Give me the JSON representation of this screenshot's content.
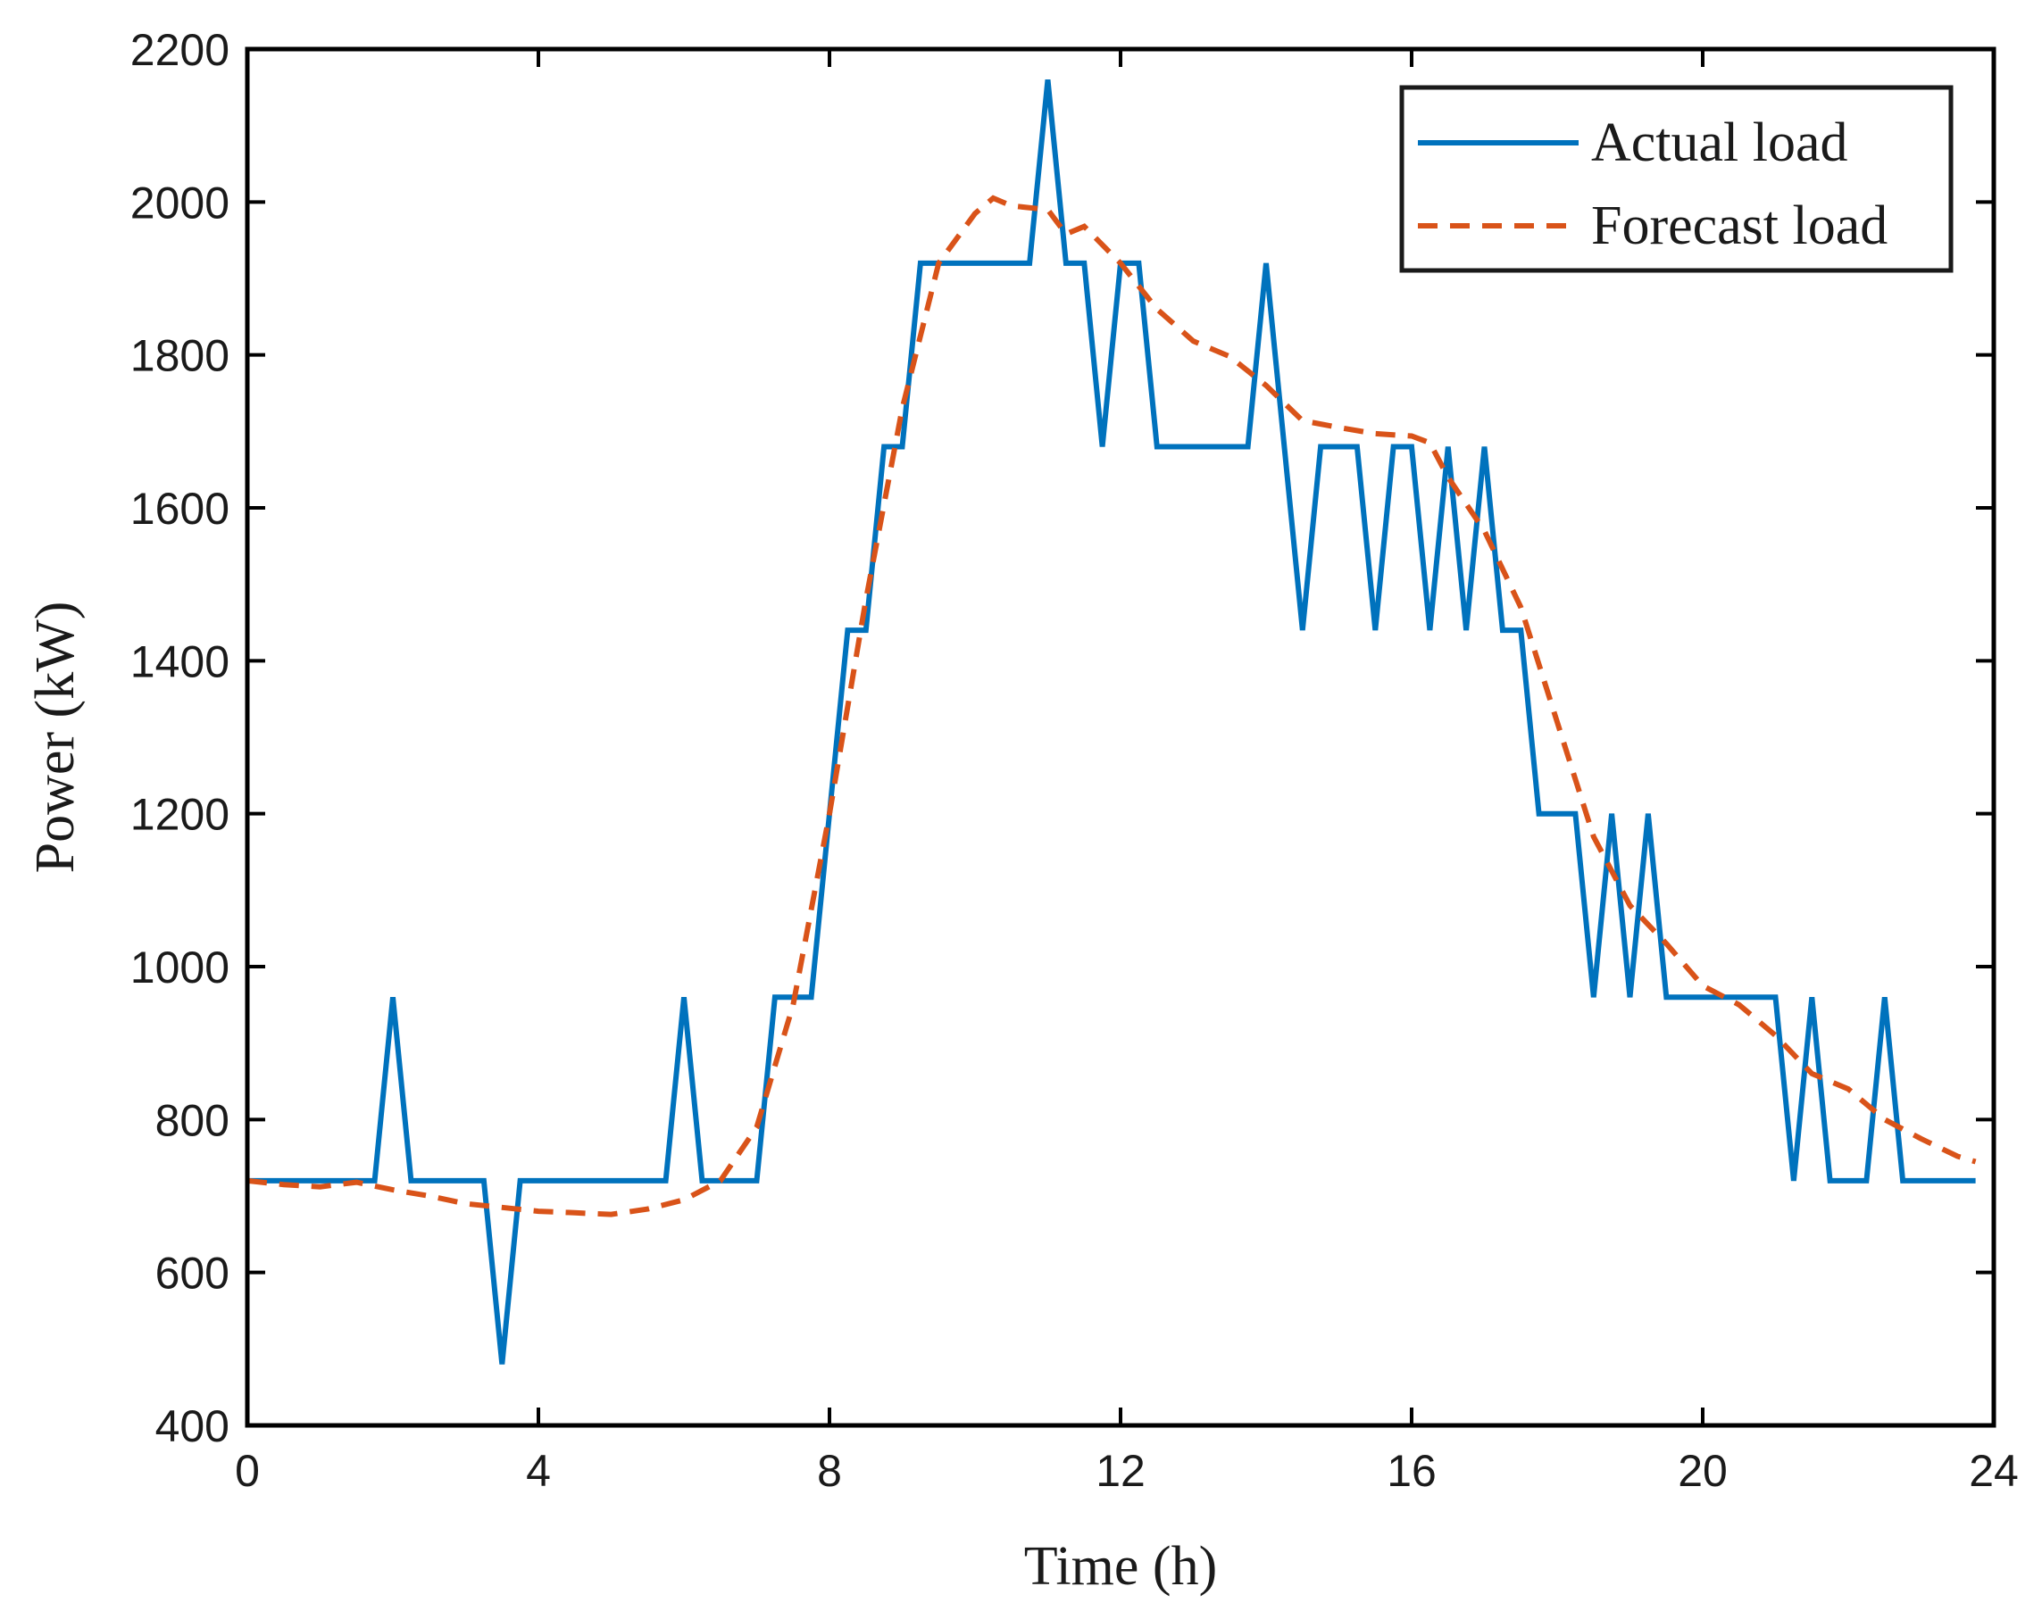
{
  "chart_data": {
    "type": "line",
    "title": "",
    "xlabel": "Time (h)",
    "ylabel": "Power (kW)",
    "xlim": [
      0,
      24
    ],
    "ylim": [
      400,
      2200
    ],
    "xticks": [
      0,
      4,
      8,
      12,
      16,
      20,
      24
    ],
    "yticks": [
      400,
      600,
      800,
      1000,
      1200,
      1400,
      1600,
      1800,
      2000,
      2200
    ],
    "grid": false,
    "legend_position": "top-right",
    "series": [
      {
        "name": "Actual load",
        "color": "#0072BD",
        "style": "solid",
        "x": [
          0,
          1.75,
          2,
          2.25,
          3.25,
          3.5,
          3.75,
          5.75,
          6,
          6.25,
          7,
          7.25,
          7.75,
          8,
          8.25,
          8.5,
          8.75,
          9,
          9.25,
          10.75,
          11,
          11.25,
          11.5,
          11.75,
          12,
          12.25,
          12.5,
          13.75,
          14,
          14.25,
          14.5,
          14.75,
          15.25,
          15.5,
          15.75,
          16,
          16.25,
          16.5,
          16.75,
          17,
          17.25,
          17.5,
          17.75,
          18.25,
          18.5,
          18.75,
          19,
          19.25,
          19.5,
          21,
          21.25,
          21.5,
          21.75,
          22.25,
          22.5,
          22.75,
          23.75
        ],
        "y": [
          720,
          720,
          960,
          720,
          720,
          480,
          720,
          720,
          960,
          720,
          720,
          960,
          960,
          1200,
          1440,
          1440,
          1680,
          1680,
          1920,
          1920,
          2160,
          1920,
          1920,
          1680,
          1920,
          1920,
          1680,
          1680,
          1920,
          1680,
          1440,
          1680,
          1680,
          1440,
          1680,
          1680,
          1440,
          1680,
          1440,
          1680,
          1440,
          1440,
          1200,
          1200,
          960,
          1200,
          960,
          1200,
          960,
          960,
          720,
          960,
          720,
          720,
          960,
          720,
          720
        ]
      },
      {
        "name": "Forecast load",
        "color": "#D95319",
        "style": "dashed",
        "x": [
          0,
          0.5,
          1,
          1.5,
          2,
          2.5,
          3,
          3.5,
          4,
          4.5,
          5,
          5.5,
          6,
          6.5,
          7,
          7.5,
          8,
          8.5,
          9,
          9.5,
          10,
          10.25,
          10.5,
          11,
          11.25,
          11.5,
          12,
          12.5,
          13,
          13.5,
          14,
          14.5,
          15,
          15.5,
          16,
          16.25,
          16.5,
          17,
          17.5,
          18,
          18.5,
          19,
          19.5,
          20,
          20.5,
          21,
          21.5,
          22,
          22.5,
          23,
          23.5,
          23.75
        ],
        "y": [
          720,
          715,
          712,
          718,
          708,
          700,
          690,
          685,
          680,
          678,
          676,
          683,
          695,
          720,
          790,
          950,
          1200,
          1480,
          1730,
          1920,
          1985,
          2005,
          1995,
          1990,
          1958,
          1968,
          1920,
          1860,
          1818,
          1798,
          1760,
          1714,
          1705,
          1697,
          1694,
          1685,
          1640,
          1570,
          1470,
          1320,
          1170,
          1080,
          1030,
          975,
          950,
          910,
          860,
          840,
          800,
          775,
          752,
          745
        ]
      }
    ]
  }
}
